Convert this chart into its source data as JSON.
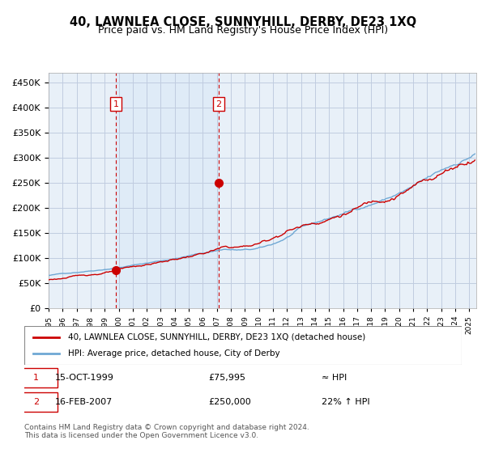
{
  "title": "40, LAWNLEA CLOSE, SUNNYHILL, DERBY, DE23 1XQ",
  "subtitle": "Price paid vs. HM Land Registry's House Price Index (HPI)",
  "sale1_date": "15-OCT-1999",
  "sale1_price": 75995,
  "sale1_label": "1",
  "sale1_year": 1999.79,
  "sale2_date": "16-FEB-2007",
  "sale2_price": 250000,
  "sale2_label": "2",
  "sale2_year": 2007.12,
  "legend_line1": "40, LAWNLEA CLOSE, SUNNYHILL, DERBY, DE23 1XQ (detached house)",
  "legend_line2": "HPI: Average price, detached house, City of Derby",
  "table_row1": "1     15-OCT-1999          £75,995             ≈ HPI",
  "table_row2": "2     16-FEB-2007          £250,000           22% ↑ HPI",
  "footnote": "Contains HM Land Registry data © Crown copyright and database right 2024.\nThis data is licensed under the Open Government Licence v3.0.",
  "hpi_color": "#6fa8d4",
  "price_color": "#cc0000",
  "bg_plot_color": "#e8f0f8",
  "shade_color": "#d0e4f7",
  "grid_color": "#c0cce0",
  "ylim": [
    0,
    470000
  ],
  "xlim_start": 1995.0,
  "xlim_end": 2025.5
}
